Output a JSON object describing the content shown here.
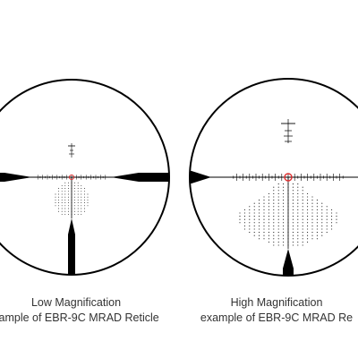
{
  "colors": {
    "background": "#ffffff",
    "reticle": "#000000",
    "center_circle": "#e03030",
    "caption_text": "#333333"
  },
  "low_magnification": {
    "caption_line1": "Low Magnification",
    "caption_line2": "xample of EBR-9C MRAD Reticle"
  },
  "high_magnification": {
    "caption_line1": "High Magnification",
    "caption_line2": "example of EBR-9C MRAD Re"
  }
}
